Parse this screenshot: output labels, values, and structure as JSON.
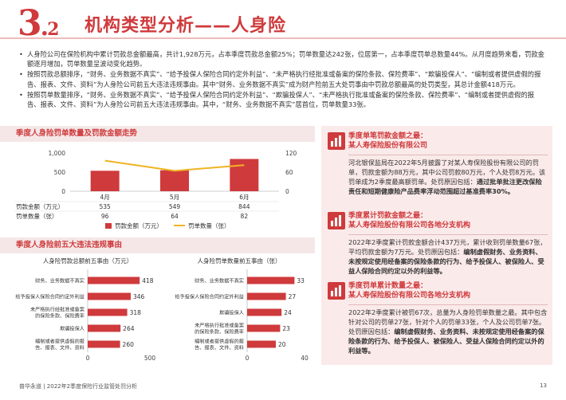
{
  "header": {
    "section_number": "3",
    "section_dot": ".",
    "section_sub": "2",
    "title": "机构类型分析——人身险"
  },
  "bullets": [
    "人身险公司在保险机构中累计罚款总金额最高，共计1,928万元，占本季度罚款总金额25%；罚单数量达242张，位居第一，占本季度罚单总数量44%。从月度趋势来看，罚款金额逐月增加，罚单数量呈波动变化趋势。",
    "按照罚款总额排序，“财务、业务数据不真实”、“给予投保人保险合同约定外利益”、“未严格执行经批准或备案的保险条款、保险费率”、“欺骗投保人”、“编制或者提供虚假的报告、报表、文件、资料”为人身险公司前五大违法违规事由。其中“财务、业务数据不真实”成为财产险前五大处罚事由中罚款总额最高的处罚类型，其总计金额418万元。",
    "按照罚单数量排序，“财务、业务数据不真实”、“给予投保人保险合同约定外利益”、“欺骗投保人”、“未严格执行批准或备案的保险条款、保险费率”、“编制或者提供虚假的报告、报表、文件、资料”为人身险公司前五大违法违规事由。其中，“财务、业务数据不真实”居首位，罚单数量33张。"
  ],
  "panel1": {
    "title": "季度人身险罚单数量及罚款金额走势"
  },
  "panel2": {
    "title": "季度人身险前五大违法违规事由"
  },
  "chart_data": [
    {
      "type": "bar+line",
      "categories": [
        "4月",
        "5月",
        "6月"
      ],
      "series": [
        {
          "name": "罚款金额（万元）",
          "type": "bar",
          "axis": "left",
          "values": [
            535,
            549,
            844
          ],
          "color": "#cf3a3c"
        },
        {
          "name": "罚单数量（张）",
          "type": "line",
          "axis": "right",
          "values": [
            96,
            64,
            82
          ],
          "color": "#f0b323"
        }
      ],
      "left_ticks": [
        "0",
        "500",
        "1,000"
      ],
      "right_ticks": [
        "0",
        "60",
        "120"
      ],
      "ylim_left": [
        0,
        1000
      ],
      "ylim_right": [
        0,
        120
      ],
      "table_rows": [
        {
          "label": "罚款金额（万元）",
          "values": [
            "535",
            "549",
            "844"
          ]
        },
        {
          "label": "罚单数量（张）",
          "values": [
            "96",
            "64",
            "82"
          ]
        }
      ],
      "legend_position": "bottom"
    },
    {
      "type": "bar",
      "orientation": "horizontal",
      "title": "人身险罚款总额前五事由（万元）",
      "categories": [
        "财务、业务数据不真实",
        "给予投保人保险合同约定外利益",
        "未严格执行经批准或备案的保险条款、保险费率",
        "欺骗投保人",
        "编制或者提供虚假的报告、报表、文件、资料"
      ],
      "values": [
        418,
        346,
        318,
        264,
        260
      ],
      "xlim": [
        0,
        500
      ],
      "x_ticks": [
        "0",
        "500"
      ],
      "color": "#cf3a3c"
    },
    {
      "type": "bar",
      "orientation": "horizontal",
      "title": "人身险罚单数量前五事由（张）",
      "categories": [
        "财务、业务数据不真实",
        "给予投保人保险合同约定外利益",
        "欺骗投保人",
        "未严格执行批准或备案的保险条款、保险费率",
        "编制或者提供虚假的报告、报表、文件、资料"
      ],
      "values": [
        33,
        27,
        24,
        23,
        20
      ],
      "xlim": [
        0,
        40
      ],
      "x_ticks": [
        "0",
        "40"
      ],
      "color": "#cf3a3c"
    }
  ],
  "cards": [
    {
      "title_line1": "季度单笔罚款金额之最：",
      "title_line2": "某人寿保险股份有限公司",
      "body_plain": "河北银保监局在2022年5月披露了对某人寿保险股份有限公司的罚单，罚款金额为88万元，其中公司罚款80万元，个人处罚8万元。该罚单成为2季度最高额罚单。处罚原因包括：",
      "body_bold": "通过批单批注更改保险责任和短期健康险产品费率浮动范围超过基准费率30%。"
    },
    {
      "title_line1": "季度累计罚款金额之最：",
      "title_line2": "某人寿保险股份有限公司各地分支机构",
      "body_plain": "2022年2季度累计罚款金额合计437万元，累计收到罚单数量67张，平均罚款金额为7万元。处罚原因包括：",
      "body_bold": "编制虚假财务、业务资料、未按规定使用经备案的保险条款的行为、给予投保人、被保险人、受益人保险合同约定以外的利益等。"
    },
    {
      "title_line1": "季度罚单累计数量之最：",
      "title_line2": "某人寿保险股份有限公司各地分支机构",
      "body_plain": "2022年2季度累计被罚67次，总量为人身险罚单数量之最。其中包含针对公司的罚单27张，针对个人的罚单33张，个人及公司罚单7张。处罚原因包括：",
      "body_bold": "编制虚假财务、业务资料、未按规定使用经备案的保险条款的行为、给予投保人、被保险人、受益人保险合同约定以外的利益等。"
    }
  ],
  "footer": {
    "text": "普华永道 | 2022年2季度保险行业监管处罚分析",
    "page": "13"
  }
}
